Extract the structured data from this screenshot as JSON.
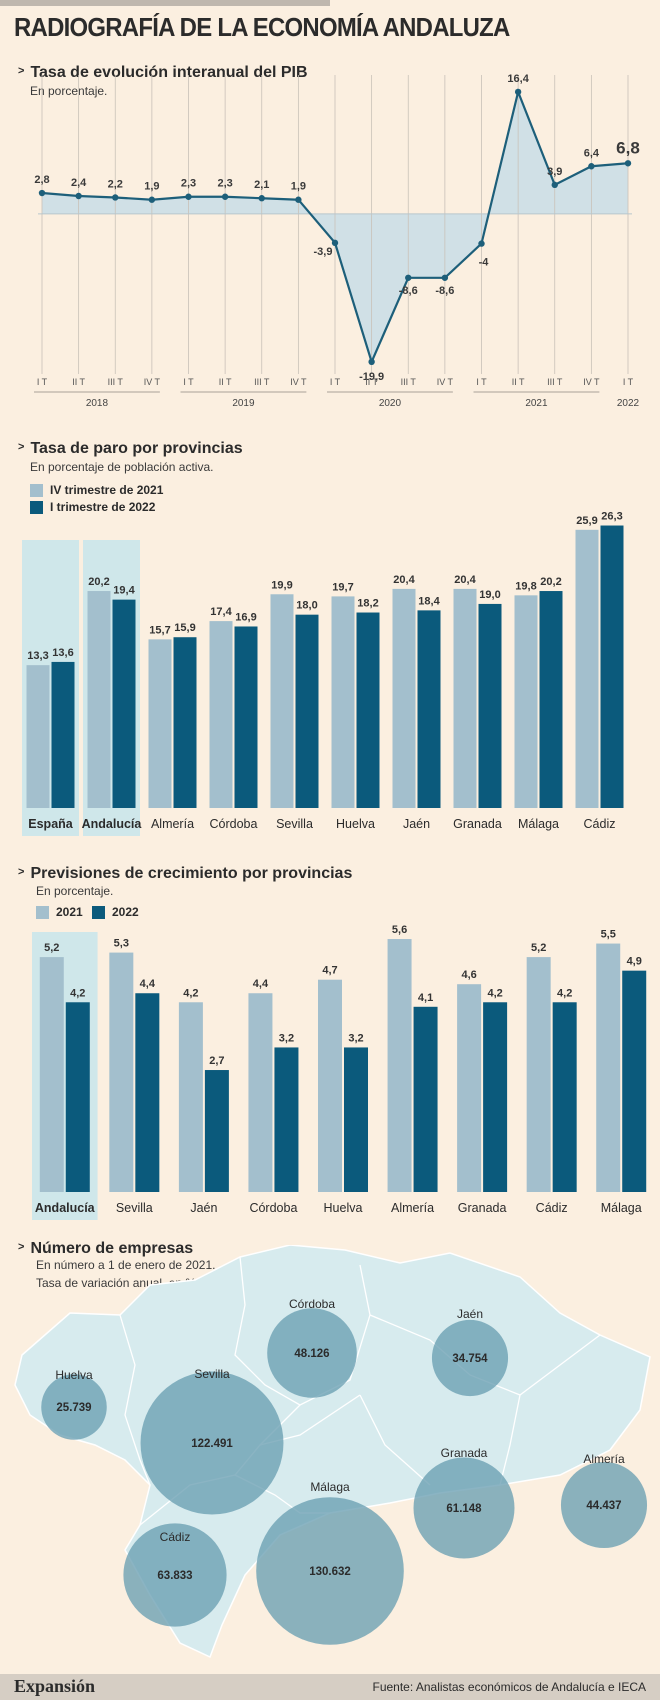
{
  "page": {
    "title": "RADIOGRAFÍA DE LA ECONOMÍA ANDALUZA",
    "brand": "Expansión",
    "source": "Fuente: Analistas económicos de Andalucía e IECA"
  },
  "colors": {
    "light": "#a3bfcd",
    "dark": "#0b5a7c",
    "highlight": "#cfe7ea",
    "area": "#d0e0e6",
    "line": "#1d5f7a",
    "bubble": "#6a9fb2",
    "map": "#d7ebee"
  },
  "chart_data": [
    {
      "type": "line",
      "title": "Tasa de evolución interanual del PIB",
      "subtitle": "En porcentaje.",
      "x": [
        "I T",
        "II T",
        "III T",
        "IV T",
        "I T",
        "II T",
        "III T",
        "IV T",
        "I T",
        "II T",
        "III T",
        "IV T",
        "I T",
        "II T",
        "III T",
        "IV T",
        "I T"
      ],
      "year_groups": [
        {
          "label": "2018",
          "start": 0,
          "end": 3
        },
        {
          "label": "2019",
          "start": 4,
          "end": 7
        },
        {
          "label": "2020",
          "start": 8,
          "end": 11
        },
        {
          "label": "2021",
          "start": 12,
          "end": 15
        },
        {
          "label": "2022",
          "start": 16,
          "end": 16
        }
      ],
      "values": [
        2.8,
        2.4,
        2.2,
        1.9,
        2.3,
        2.3,
        2.1,
        1.9,
        -3.9,
        -19.9,
        -8.6,
        -8.6,
        -4,
        16.4,
        3.9,
        6.4,
        6.8
      ],
      "labels": [
        "2,8",
        "2,4",
        "2,2",
        "1,9",
        "2,3",
        "2,3",
        "2,1",
        "1,9",
        "-3,9",
        "-19,9",
        "-8,6",
        "-8,6",
        "-4",
        "16,4",
        "3,9",
        "6,4",
        "6,8"
      ],
      "ylim": [
        -21,
        18
      ]
    },
    {
      "type": "bar",
      "title": "Tasa de paro por provincias",
      "subtitle": "En porcentaje de población activa.",
      "categories": [
        "España",
        "Andalucía",
        "Almería",
        "Córdoba",
        "Sevilla",
        "Huelva",
        "Jaén",
        "Granada",
        "Málaga",
        "Cádiz"
      ],
      "highlighted": [
        "España",
        "Andalucía"
      ],
      "series": [
        {
          "name": "IV trimestre de 2021",
          "values": [
            13.3,
            20.2,
            15.7,
            17.4,
            19.9,
            19.7,
            20.4,
            20.4,
            19.8,
            25.9
          ],
          "labels": [
            "13,3",
            "20,2",
            "15,7",
            "17,4",
            "19,9",
            "19,7",
            "20,4",
            "20,4",
            "19,8",
            "25,9"
          ]
        },
        {
          "name": "I trimestre de 2022",
          "values": [
            13.6,
            19.4,
            15.9,
            16.9,
            18.0,
            18.2,
            18.4,
            19.0,
            20.2,
            26.3
          ],
          "labels": [
            "13,6",
            "19,4",
            "15,9",
            "16,9",
            "18,0",
            "18,2",
            "18,4",
            "19,0",
            "20,2",
            "26,3"
          ]
        }
      ],
      "ylim": [
        0,
        27
      ]
    },
    {
      "type": "bar",
      "title": "Previsiones de crecimiento por provincias",
      "subtitle": "En porcentaje.",
      "categories": [
        "Andalucía",
        "Sevilla",
        "Jaén",
        "Córdoba",
        "Huelva",
        "Almería",
        "Granada",
        "Cádiz",
        "Málaga"
      ],
      "highlighted": [
        "Andalucía"
      ],
      "series": [
        {
          "name": "2021",
          "values": [
            5.2,
            5.3,
            4.2,
            4.4,
            4.7,
            5.6,
            4.6,
            5.2,
            5.5
          ],
          "labels": [
            "5,2",
            "5,3",
            "4,2",
            "4,4",
            "4,7",
            "5,6",
            "4,6",
            "5,2",
            "5,5"
          ]
        },
        {
          "name": "2022",
          "values": [
            4.2,
            4.4,
            2.7,
            3.2,
            3.2,
            4.1,
            4.2,
            4.2,
            4.9
          ],
          "labels": [
            "4,2",
            "4,4",
            "2,7",
            "3,2",
            "3,2",
            "4,1",
            "4,2",
            "4,2",
            "4,9"
          ]
        }
      ],
      "ylim": [
        0,
        5.8
      ]
    }
  ],
  "companies": {
    "title": "Número de empresas",
    "subtitle1": "En número a 1 de enero de 2021.",
    "subtitle2": "Tasa de variación anual, en %",
    "provinces": [
      {
        "name": "Huelva",
        "value": 25739,
        "label": "25.739"
      },
      {
        "name": "Sevilla",
        "value": 122491,
        "label": "122.491"
      },
      {
        "name": "Córdoba",
        "value": 48126,
        "label": "48.126"
      },
      {
        "name": "Jaén",
        "value": 34754,
        "label": "34.754"
      },
      {
        "name": "Granada",
        "value": 61148,
        "label": "61.148"
      },
      {
        "name": "Almería",
        "value": 44437,
        "label": "44.437"
      },
      {
        "name": "Málaga",
        "value": 130632,
        "label": "130.632"
      },
      {
        "name": "Cádiz",
        "value": 63833,
        "label": "63.833"
      }
    ]
  }
}
